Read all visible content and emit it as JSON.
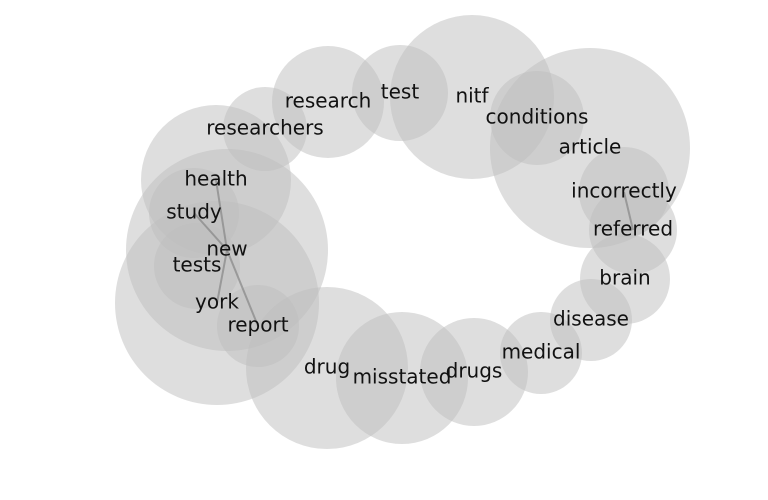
{
  "chart_data": {
    "type": "bubble-network",
    "words": [
      {
        "id": "research",
        "label": "research"
      },
      {
        "id": "test",
        "label": "test"
      },
      {
        "id": "nitf",
        "label": "nitf"
      },
      {
        "id": "conditions",
        "label": "conditions"
      },
      {
        "id": "article",
        "label": "article"
      },
      {
        "id": "researchers",
        "label": "researchers"
      },
      {
        "id": "health",
        "label": "health"
      },
      {
        "id": "study",
        "label": "study"
      },
      {
        "id": "new",
        "label": "new"
      },
      {
        "id": "tests",
        "label": "tests"
      },
      {
        "id": "york",
        "label": "york"
      },
      {
        "id": "report",
        "label": "report"
      },
      {
        "id": "drug",
        "label": "drug"
      },
      {
        "id": "misstated",
        "label": "misstated"
      },
      {
        "id": "drugs",
        "label": "drugs"
      },
      {
        "id": "medical",
        "label": "medical"
      },
      {
        "id": "disease",
        "label": "disease"
      },
      {
        "id": "brain",
        "label": "brain"
      },
      {
        "id": "referred",
        "label": "referred"
      },
      {
        "id": "incorrectly",
        "label": "incorrectly"
      }
    ],
    "links": [
      [
        "health",
        "new"
      ],
      [
        "study",
        "new"
      ],
      [
        "new",
        "york"
      ],
      [
        "new",
        "report"
      ],
      [
        "incorrectly",
        "referred"
      ]
    ]
  }
}
